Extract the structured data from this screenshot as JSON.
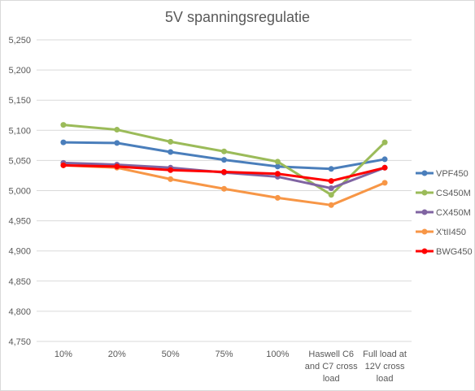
{
  "chart_data": {
    "type": "line",
    "title": "5V spanningsregulatie",
    "xlabel": "",
    "ylabel": "",
    "ylim": [
      4.75,
      5.25
    ],
    "yticks": [
      "5,250",
      "5,200",
      "5,150",
      "5,100",
      "5,050",
      "5,000",
      "4,950",
      "4,900",
      "4,850",
      "4,800",
      "4,750"
    ],
    "ytick_values": [
      5.25,
      5.2,
      5.15,
      5.1,
      5.05,
      5.0,
      4.95,
      4.9,
      4.85,
      4.8,
      4.75
    ],
    "categories": [
      [
        "10%"
      ],
      [
        "20%"
      ],
      [
        "50%"
      ],
      [
        "75%"
      ],
      [
        "100%"
      ],
      [
        "Haswell C6",
        "and C7 cross",
        "load"
      ],
      [
        "Full load at",
        "12V cross",
        "load"
      ]
    ],
    "grid": true,
    "legend_position": "right",
    "series": [
      {
        "name": "VPF450",
        "color": "#4a7ebb",
        "values": [
          5.08,
          5.079,
          5.064,
          5.051,
          5.04,
          5.036,
          5.052
        ]
      },
      {
        "name": "CS450M",
        "color": "#9bbb59",
        "values": [
          5.109,
          5.101,
          5.081,
          5.065,
          5.048,
          4.993,
          5.08
        ]
      },
      {
        "name": "CX450M",
        "color": "#8064a2",
        "values": [
          5.046,
          5.043,
          5.038,
          5.03,
          5.023,
          5.004,
          5.038
        ]
      },
      {
        "name": "X'tII450",
        "color": "#f79646",
        "values": [
          5.042,
          5.038,
          5.019,
          5.003,
          4.988,
          4.976,
          5.013
        ]
      },
      {
        "name": "BWG450",
        "color": "#ff0000",
        "values": [
          5.042,
          5.04,
          5.034,
          5.031,
          5.028,
          5.016,
          5.038
        ]
      }
    ]
  }
}
